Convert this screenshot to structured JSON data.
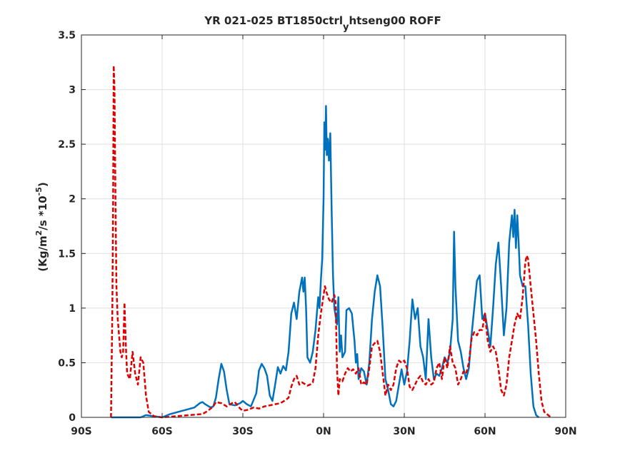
{
  "chart_data": {
    "type": "line",
    "title": {
      "main": "YR 021-025 BT1850ctrl",
      "subscript": "y",
      "rest": "htseng00 ROFF"
    },
    "ylabel": {
      "part1": "(Kg/m",
      "sup1": "2",
      "part2": "/s   *10",
      "sup2": "-5",
      "part3": ")"
    },
    "xlabel": "",
    "xlim": [
      -90,
      90
    ],
    "ylim": [
      0,
      3.5
    ],
    "xticks": [
      {
        "value": -90,
        "label": "90S"
      },
      {
        "value": -60,
        "label": "60S"
      },
      {
        "value": -30,
        "label": "30S"
      },
      {
        "value": 0,
        "label": "0N"
      },
      {
        "value": 30,
        "label": "30N"
      },
      {
        "value": 60,
        "label": "60N"
      },
      {
        "value": 90,
        "label": "90N"
      }
    ],
    "yticks": [
      {
        "value": 0,
        "label": "0"
      },
      {
        "value": 0.5,
        "label": "0.5"
      },
      {
        "value": 1,
        "label": "1"
      },
      {
        "value": 1.5,
        "label": "1.5"
      },
      {
        "value": 2,
        "label": "2"
      },
      {
        "value": 2.5,
        "label": "2.5"
      },
      {
        "value": 3,
        "label": "3"
      },
      {
        "value": 3.5,
        "label": "3.5"
      }
    ],
    "grid": true,
    "legend": "none",
    "series": [
      {
        "color": "#0072bd",
        "style": "solid",
        "points": [
          [
            -79,
            0
          ],
          [
            -75,
            0
          ],
          [
            -68,
            0.0
          ],
          [
            -66,
            0.02
          ],
          [
            -63,
            0.01
          ],
          [
            -60,
            0.0
          ],
          [
            -57,
            0.03
          ],
          [
            -54,
            0.05
          ],
          [
            -51,
            0.07
          ],
          [
            -48,
            0.09
          ],
          [
            -46,
            0.13
          ],
          [
            -45,
            0.14
          ],
          [
            -44,
            0.12
          ],
          [
            -42,
            0.09
          ],
          [
            -41,
            0.1
          ],
          [
            -40,
            0.18
          ],
          [
            -39,
            0.35
          ],
          [
            -38,
            0.49
          ],
          [
            -37,
            0.42
          ],
          [
            -36,
            0.25
          ],
          [
            -35,
            0.12
          ],
          [
            -33,
            0.11
          ],
          [
            -31,
            0.13
          ],
          [
            -30,
            0.15
          ],
          [
            -28.5,
            0.12
          ],
          [
            -27,
            0.1
          ],
          [
            -25,
            0.22
          ],
          [
            -24,
            0.43
          ],
          [
            -23,
            0.49
          ],
          [
            -22,
            0.45
          ],
          [
            -21,
            0.38
          ],
          [
            -20,
            0.2
          ],
          [
            -19,
            0.15
          ],
          [
            -18,
            0.3
          ],
          [
            -17,
            0.46
          ],
          [
            -16,
            0.4
          ],
          [
            -15,
            0.47
          ],
          [
            -14,
            0.43
          ],
          [
            -13,
            0.6
          ],
          [
            -12,
            0.95
          ],
          [
            -11,
            1.05
          ],
          [
            -10,
            0.9
          ],
          [
            -9,
            1.15
          ],
          [
            -8,
            1.28
          ],
          [
            -7.5,
            1.15
          ],
          [
            -7,
            1.28
          ],
          [
            -6.5,
            1.0
          ],
          [
            -6,
            0.55
          ],
          [
            -5,
            0.5
          ],
          [
            -4,
            0.6
          ],
          [
            -3,
            0.8
          ],
          [
            -2,
            1.1
          ],
          [
            -1.5,
            1.0
          ],
          [
            -1,
            1.25
          ],
          [
            -0.5,
            1.45
          ],
          [
            0,
            2.0
          ],
          [
            0.3,
            2.7
          ],
          [
            0.6,
            2.45
          ],
          [
            0.9,
            2.85
          ],
          [
            1.2,
            2.4
          ],
          [
            1.6,
            2.55
          ],
          [
            2.0,
            2.35
          ],
          [
            2.5,
            2.6
          ],
          [
            3,
            1.9
          ],
          [
            3.5,
            1.3
          ],
          [
            4,
            1.0
          ],
          [
            5,
            0.85
          ],
          [
            5.5,
            1.1
          ],
          [
            6,
            0.6
          ],
          [
            6.5,
            0.75
          ],
          [
            7,
            0.55
          ],
          [
            8,
            0.6
          ],
          [
            8.5,
            0.98
          ],
          [
            9.5,
            1.0
          ],
          [
            10.5,
            0.95
          ],
          [
            11.5,
            0.7
          ],
          [
            12,
            0.5
          ],
          [
            12.5,
            0.58
          ],
          [
            13,
            0.35
          ],
          [
            14,
            0.45
          ],
          [
            15,
            0.42
          ],
          [
            16,
            0.3
          ],
          [
            17,
            0.5
          ],
          [
            18,
            0.9
          ],
          [
            19,
            1.15
          ],
          [
            20,
            1.3
          ],
          [
            21,
            1.2
          ],
          [
            22,
            0.8
          ],
          [
            23,
            0.35
          ],
          [
            24,
            0.25
          ],
          [
            25,
            0.12
          ],
          [
            26,
            0.1
          ],
          [
            27,
            0.15
          ],
          [
            28,
            0.3
          ],
          [
            29,
            0.44
          ],
          [
            30,
            0.3
          ],
          [
            31,
            0.42
          ],
          [
            32,
            0.7
          ],
          [
            33,
            1.08
          ],
          [
            34,
            0.9
          ],
          [
            35,
            1.0
          ],
          [
            36,
            0.65
          ],
          [
            37,
            0.55
          ],
          [
            38,
            0.35
          ],
          [
            39,
            0.9
          ],
          [
            40,
            0.55
          ],
          [
            41,
            0.35
          ],
          [
            42,
            0.4
          ],
          [
            43,
            0.38
          ],
          [
            44,
            0.45
          ],
          [
            45,
            0.55
          ],
          [
            46,
            0.5
          ],
          [
            47,
            0.6
          ],
          [
            48,
            0.9
          ],
          [
            48.5,
            1.7
          ],
          [
            49,
            1.2
          ],
          [
            50,
            0.7
          ],
          [
            51,
            0.6
          ],
          [
            52,
            0.45
          ],
          [
            53,
            0.35
          ],
          [
            54,
            0.45
          ],
          [
            55,
            0.75
          ],
          [
            56,
            1.0
          ],
          [
            57,
            1.25
          ],
          [
            58,
            1.3
          ],
          [
            59,
            0.9
          ],
          [
            60,
            0.95
          ],
          [
            61,
            0.8
          ],
          [
            62,
            0.65
          ],
          [
            63,
            1.0
          ],
          [
            64,
            1.4
          ],
          [
            65,
            1.6
          ],
          [
            66,
            1.2
          ],
          [
            67,
            0.75
          ],
          [
            68,
            1.0
          ],
          [
            69,
            1.6
          ],
          [
            70,
            1.85
          ],
          [
            70.5,
            1.65
          ],
          [
            71,
            1.9
          ],
          [
            71.5,
            1.55
          ],
          [
            72,
            1.85
          ],
          [
            72.5,
            1.6
          ],
          [
            73,
            1.3
          ],
          [
            74,
            1.2
          ],
          [
            75,
            1.2
          ],
          [
            76,
            0.85
          ],
          [
            77,
            0.4
          ],
          [
            78,
            0.1
          ],
          [
            79,
            0.02
          ],
          [
            80,
            0.0
          ]
        ]
      },
      {
        "color": "#e00000",
        "style": "dashed",
        "points": [
          [
            -79,
            0
          ],
          [
            -78.5,
            1.0
          ],
          [
            -78.2,
            2.0
          ],
          [
            -78,
            3.22
          ],
          [
            -77.7,
            3.0
          ],
          [
            -77.4,
            2.1
          ],
          [
            -77,
            1.2
          ],
          [
            -76.5,
            0.9
          ],
          [
            -76,
            0.75
          ],
          [
            -75.5,
            0.6
          ],
          [
            -75,
            0.55
          ],
          [
            -74.5,
            0.6
          ],
          [
            -74,
            1.05
          ],
          [
            -73.5,
            0.65
          ],
          [
            -73,
            0.4
          ],
          [
            -72,
            0.35
          ],
          [
            -71,
            0.6
          ],
          [
            -70.5,
            0.5
          ],
          [
            -70,
            0.4
          ],
          [
            -69,
            0.3
          ],
          [
            -68,
            0.55
          ],
          [
            -67,
            0.5
          ],
          [
            -66,
            0.2
          ],
          [
            -65,
            0.05
          ],
          [
            -63,
            0.01
          ],
          [
            -60,
            0.0
          ],
          [
            -55,
            0.01
          ],
          [
            -50,
            0.02
          ],
          [
            -45,
            0.03
          ],
          [
            -43,
            0.06
          ],
          [
            -41,
            0.1
          ],
          [
            -40,
            0.14
          ],
          [
            -38,
            0.13
          ],
          [
            -36,
            0.1
          ],
          [
            -34,
            0.13
          ],
          [
            -33,
            0.14
          ],
          [
            -31,
            0.08
          ],
          [
            -30,
            0.06
          ],
          [
            -28,
            0.07
          ],
          [
            -26,
            0.09
          ],
          [
            -24,
            0.08
          ],
          [
            -22,
            0.1
          ],
          [
            -20,
            0.11
          ],
          [
            -18,
            0.12
          ],
          [
            -16,
            0.13
          ],
          [
            -14,
            0.16
          ],
          [
            -13,
            0.18
          ],
          [
            -12,
            0.28
          ],
          [
            -11,
            0.35
          ],
          [
            -10,
            0.38
          ],
          [
            -9,
            0.3
          ],
          [
            -8,
            0.32
          ],
          [
            -6,
            0.29
          ],
          [
            -5,
            0.3
          ],
          [
            -4,
            0.32
          ],
          [
            -3,
            0.45
          ],
          [
            -2,
            0.75
          ],
          [
            -1,
            0.95
          ],
          [
            0,
            1.12
          ],
          [
            0.5,
            1.2
          ],
          [
            1,
            1.15
          ],
          [
            2,
            1.08
          ],
          [
            3,
            1.05
          ],
          [
            4,
            1.12
          ],
          [
            4.5,
            1.05
          ],
          [
            5,
            0.45
          ],
          [
            5.5,
            0.2
          ],
          [
            6,
            0.35
          ],
          [
            7,
            0.33
          ],
          [
            8,
            0.4
          ],
          [
            9,
            0.45
          ],
          [
            10,
            0.42
          ],
          [
            11,
            0.44
          ],
          [
            12,
            0.4
          ],
          [
            13,
            0.45
          ],
          [
            14,
            0.3
          ],
          [
            15,
            0.32
          ],
          [
            16,
            0.3
          ],
          [
            17,
            0.45
          ],
          [
            18,
            0.65
          ],
          [
            19,
            0.68
          ],
          [
            20,
            0.7
          ],
          [
            21,
            0.6
          ],
          [
            22,
            0.4
          ],
          [
            23,
            0.2
          ],
          [
            24,
            0.3
          ],
          [
            25,
            0.25
          ],
          [
            26,
            0.3
          ],
          [
            27,
            0.45
          ],
          [
            28,
            0.52
          ],
          [
            29,
            0.5
          ],
          [
            30,
            0.52
          ],
          [
            31,
            0.45
          ],
          [
            32,
            0.28
          ],
          [
            33,
            0.25
          ],
          [
            34,
            0.3
          ],
          [
            35,
            0.35
          ],
          [
            36,
            0.38
          ],
          [
            37,
            0.32
          ],
          [
            38,
            0.3
          ],
          [
            39,
            0.35
          ],
          [
            40,
            0.3
          ],
          [
            41,
            0.32
          ],
          [
            42,
            0.45
          ],
          [
            43,
            0.5
          ],
          [
            44,
            0.35
          ],
          [
            45,
            0.55
          ],
          [
            46,
            0.45
          ],
          [
            47,
            0.65
          ],
          [
            48,
            0.5
          ],
          [
            49,
            0.45
          ],
          [
            50,
            0.3
          ],
          [
            51,
            0.35
          ],
          [
            52,
            0.42
          ],
          [
            53,
            0.4
          ],
          [
            54,
            0.5
          ],
          [
            55,
            0.72
          ],
          [
            56,
            0.78
          ],
          [
            57,
            0.75
          ],
          [
            58,
            0.8
          ],
          [
            59,
            0.8
          ],
          [
            60,
            0.95
          ],
          [
            61,
            0.7
          ],
          [
            62,
            0.6
          ],
          [
            63,
            0.65
          ],
          [
            64,
            0.6
          ],
          [
            65,
            0.45
          ],
          [
            66,
            0.25
          ],
          [
            67,
            0.2
          ],
          [
            68,
            0.3
          ],
          [
            69,
            0.55
          ],
          [
            70,
            0.7
          ],
          [
            71,
            0.85
          ],
          [
            72,
            0.95
          ],
          [
            73,
            0.9
          ],
          [
            74,
            1.1
          ],
          [
            75,
            1.42
          ],
          [
            75.5,
            1.48
          ],
          [
            76,
            1.45
          ],
          [
            77,
            1.2
          ],
          [
            78,
            0.95
          ],
          [
            79,
            0.7
          ],
          [
            80,
            0.4
          ],
          [
            81,
            0.15
          ],
          [
            82,
            0.05
          ],
          [
            84,
            0.01
          ],
          [
            85,
            0.0
          ]
        ]
      }
    ]
  }
}
